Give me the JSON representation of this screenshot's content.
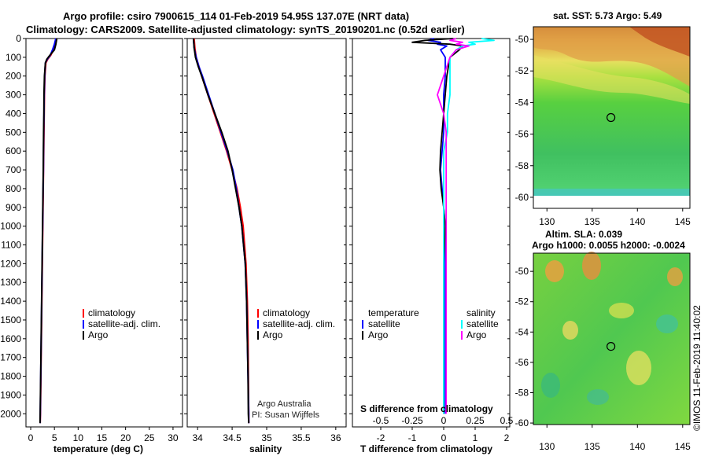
{
  "header": {
    "line1": "Argo profile: csiro 7900615_114 01-Feb-2019 54.95S 137.07E (NRT data)",
    "line2": "Climatology: CARS2009. Satellite-adjusted climatology: synTS_20190201.nc (0.52d earlier)"
  },
  "colors": {
    "climatology": "#ff0000",
    "satellite": "#0000ff",
    "argo": "#000000",
    "salinity_satellite": "#00ffff",
    "salinity_argo": "#ff00ff"
  },
  "chart_data": [
    {
      "type": "line",
      "name": "temperature-profile",
      "xlabel": "temperature (deg C)",
      "ylabel": "",
      "xlim": [
        -1,
        32
      ],
      "ylim": [
        2070,
        0
      ],
      "xticks": [
        "0",
        "5",
        "10",
        "15",
        "20",
        "25",
        "30"
      ],
      "yticks": [
        "0",
        "100",
        "200",
        "300",
        "400",
        "500",
        "600",
        "700",
        "800",
        "900",
        "1000",
        "1100",
        "1200",
        "1300",
        "1400",
        "1500",
        "1600",
        "1700",
        "1800",
        "1900",
        "2000"
      ],
      "legend": [
        "climatology",
        "satellite-adj. clim.",
        "Argo"
      ],
      "depth": [
        0,
        30,
        60,
        90,
        110,
        130,
        200,
        300,
        400,
        500,
        600,
        700,
        800,
        1000,
        1200,
        1400,
        1600,
        1800,
        2000,
        2050
      ],
      "series": [
        {
          "name": "climatology",
          "values": [
            5.4,
            5.2,
            4.8,
            4.2,
            3.6,
            3.2,
            3.0,
            2.9,
            2.85,
            2.8,
            2.75,
            2.7,
            2.65,
            2.55,
            2.45,
            2.35,
            2.25,
            2.15,
            2.05,
            2.0
          ]
        },
        {
          "name": "satellite-adj. clim.",
          "values": [
            5.3,
            5.0,
            4.6,
            4.1,
            3.5,
            3.1,
            2.95,
            2.85,
            2.8,
            2.75,
            2.7,
            2.68,
            2.62,
            2.52,
            2.42,
            2.32,
            2.22,
            2.12,
            2.02,
            1.98
          ]
        },
        {
          "name": "Argo",
          "values": [
            5.5,
            5.3,
            5.0,
            4.0,
            3.4,
            3.1,
            2.9,
            2.8,
            2.78,
            2.72,
            2.68,
            2.64,
            2.6,
            2.5,
            2.4,
            2.3,
            2.2,
            2.1,
            2.0,
            1.97
          ]
        }
      ]
    },
    {
      "type": "line",
      "name": "salinity-profile",
      "xlabel": "salinity",
      "xlim": [
        33.85,
        36.15
      ],
      "ylim": [
        2070,
        0
      ],
      "xticks": [
        "34",
        "34.5",
        "35",
        "35.5",
        "36"
      ],
      "legend": [
        "climatology",
        "satellite-adj. clim.",
        "Argo"
      ],
      "annotations": [
        "Argo Australia",
        "PI: Susan Wijffels"
      ],
      "depth": [
        0,
        50,
        100,
        150,
        200,
        300,
        400,
        500,
        600,
        700,
        800,
        900,
        1000,
        1200,
        1400,
        1600,
        1800,
        2000,
        2050
      ],
      "series": [
        {
          "name": "climatology",
          "values": [
            33.95,
            33.96,
            33.98,
            34.02,
            34.06,
            34.15,
            34.24,
            34.33,
            34.42,
            34.5,
            34.57,
            34.62,
            34.66,
            34.7,
            34.72,
            34.73,
            34.735,
            34.74,
            34.74
          ]
        },
        {
          "name": "satellite-adj. clim.",
          "values": [
            33.94,
            33.95,
            33.98,
            34.02,
            34.07,
            34.16,
            34.25,
            34.34,
            34.43,
            34.51,
            34.56,
            34.6,
            34.64,
            34.69,
            34.71,
            34.72,
            34.73,
            34.74,
            34.74
          ]
        },
        {
          "name": "Argo",
          "values": [
            33.94,
            33.95,
            33.97,
            34.01,
            34.06,
            34.15,
            34.25,
            34.35,
            34.44,
            34.5,
            34.55,
            34.6,
            34.64,
            34.69,
            34.71,
            34.72,
            34.73,
            34.735,
            34.74
          ]
        }
      ]
    },
    {
      "type": "line",
      "name": "difference-profile",
      "xlabel": "T difference from climatology",
      "xlabel_top": "S difference from climatology",
      "xlim": [
        -2.9,
        2.1
      ],
      "ylim": [
        2070,
        0
      ],
      "xticks": [
        "-2",
        "-1",
        "0",
        "1",
        "2"
      ],
      "xticks_top": [
        "-0.5",
        "-0.25",
        "0",
        "0.25",
        "0.5"
      ],
      "legend_left_title": "temperature",
      "legend_left": [
        "satellite",
        "Argo"
      ],
      "legend_right_title": "salinity",
      "legend_right": [
        "satellite",
        "Argo"
      ],
      "depth": [
        0,
        10,
        20,
        30,
        40,
        60,
        100,
        200,
        300,
        400,
        500,
        600,
        700,
        800,
        900,
        1000,
        1200,
        1400,
        1600,
        1800,
        2000
      ],
      "series": [
        {
          "name": "temperature satellite",
          "values": [
            -0.3,
            -0.5,
            -0.1,
            -0.2,
            0.1,
            -0.1,
            0.05,
            0.05,
            0.0,
            0.0,
            0.0,
            -0.05,
            -0.1,
            -0.05,
            0.0,
            0.05,
            0.05,
            0.05,
            0.05,
            0.05,
            0.05
          ]
        },
        {
          "name": "temperature Argo",
          "values": [
            0.3,
            -0.6,
            -1.0,
            0.2,
            0.6,
            0.5,
            0.2,
            0.1,
            0.05,
            0.0,
            -0.05,
            -0.1,
            -0.12,
            -0.08,
            0.0,
            0.05,
            0.0,
            0.0,
            0.0,
            0.0,
            0.0
          ]
        },
        {
          "name": "salinity satellite",
          "values": [
            0.3,
            0.4,
            0.2,
            0.25,
            0.15,
            0.1,
            0.05,
            0.05,
            0.05,
            0.03,
            0.03,
            0.0,
            0.0,
            0.0,
            0.0,
            0.0,
            0.0,
            0.0,
            0.0,
            0.0,
            0.0
          ]
        },
        {
          "name": "salinity Argo",
          "values": [
            0.1,
            0.05,
            0.15,
            0.1,
            0.2,
            0.1,
            0.05,
            0.0,
            -0.05,
            0.0,
            0.02,
            0.02,
            0.02,
            0.02,
            0.02,
            0.02,
            0.02,
            0.02,
            0.02,
            0.02,
            0.02
          ]
        }
      ]
    },
    {
      "type": "heatmap",
      "name": "sst-map",
      "title": "sat. SST: 5.73 Argo: 5.49",
      "xticks": [
        "130",
        "135",
        "140",
        "145"
      ],
      "yticks": [
        "-50",
        "-52",
        "-54",
        "-56",
        "-58",
        "-60"
      ],
      "xlim": [
        128.5,
        145.8
      ],
      "ylim": [
        -60.7,
        -49.2
      ],
      "marker": {
        "lon": 137.07,
        "lat": -54.95
      }
    },
    {
      "type": "heatmap",
      "name": "sla-map",
      "title_line1": "Altim. SLA: 0.039",
      "title_line2": "Argo h1000: 0.0055 h2000: -0.0024",
      "xticks": [
        "130",
        "135",
        "140",
        "145"
      ],
      "yticks": [
        "-50",
        "-52",
        "-54",
        "-56",
        "-58",
        "-60"
      ],
      "xlim": [
        128.5,
        145.8
      ],
      "ylim": [
        -60.1,
        -48.8
      ],
      "marker": {
        "lon": 137.07,
        "lat": -54.95
      }
    }
  ],
  "watermark": "©IMOS 11-Feb-2019 11:40:02"
}
